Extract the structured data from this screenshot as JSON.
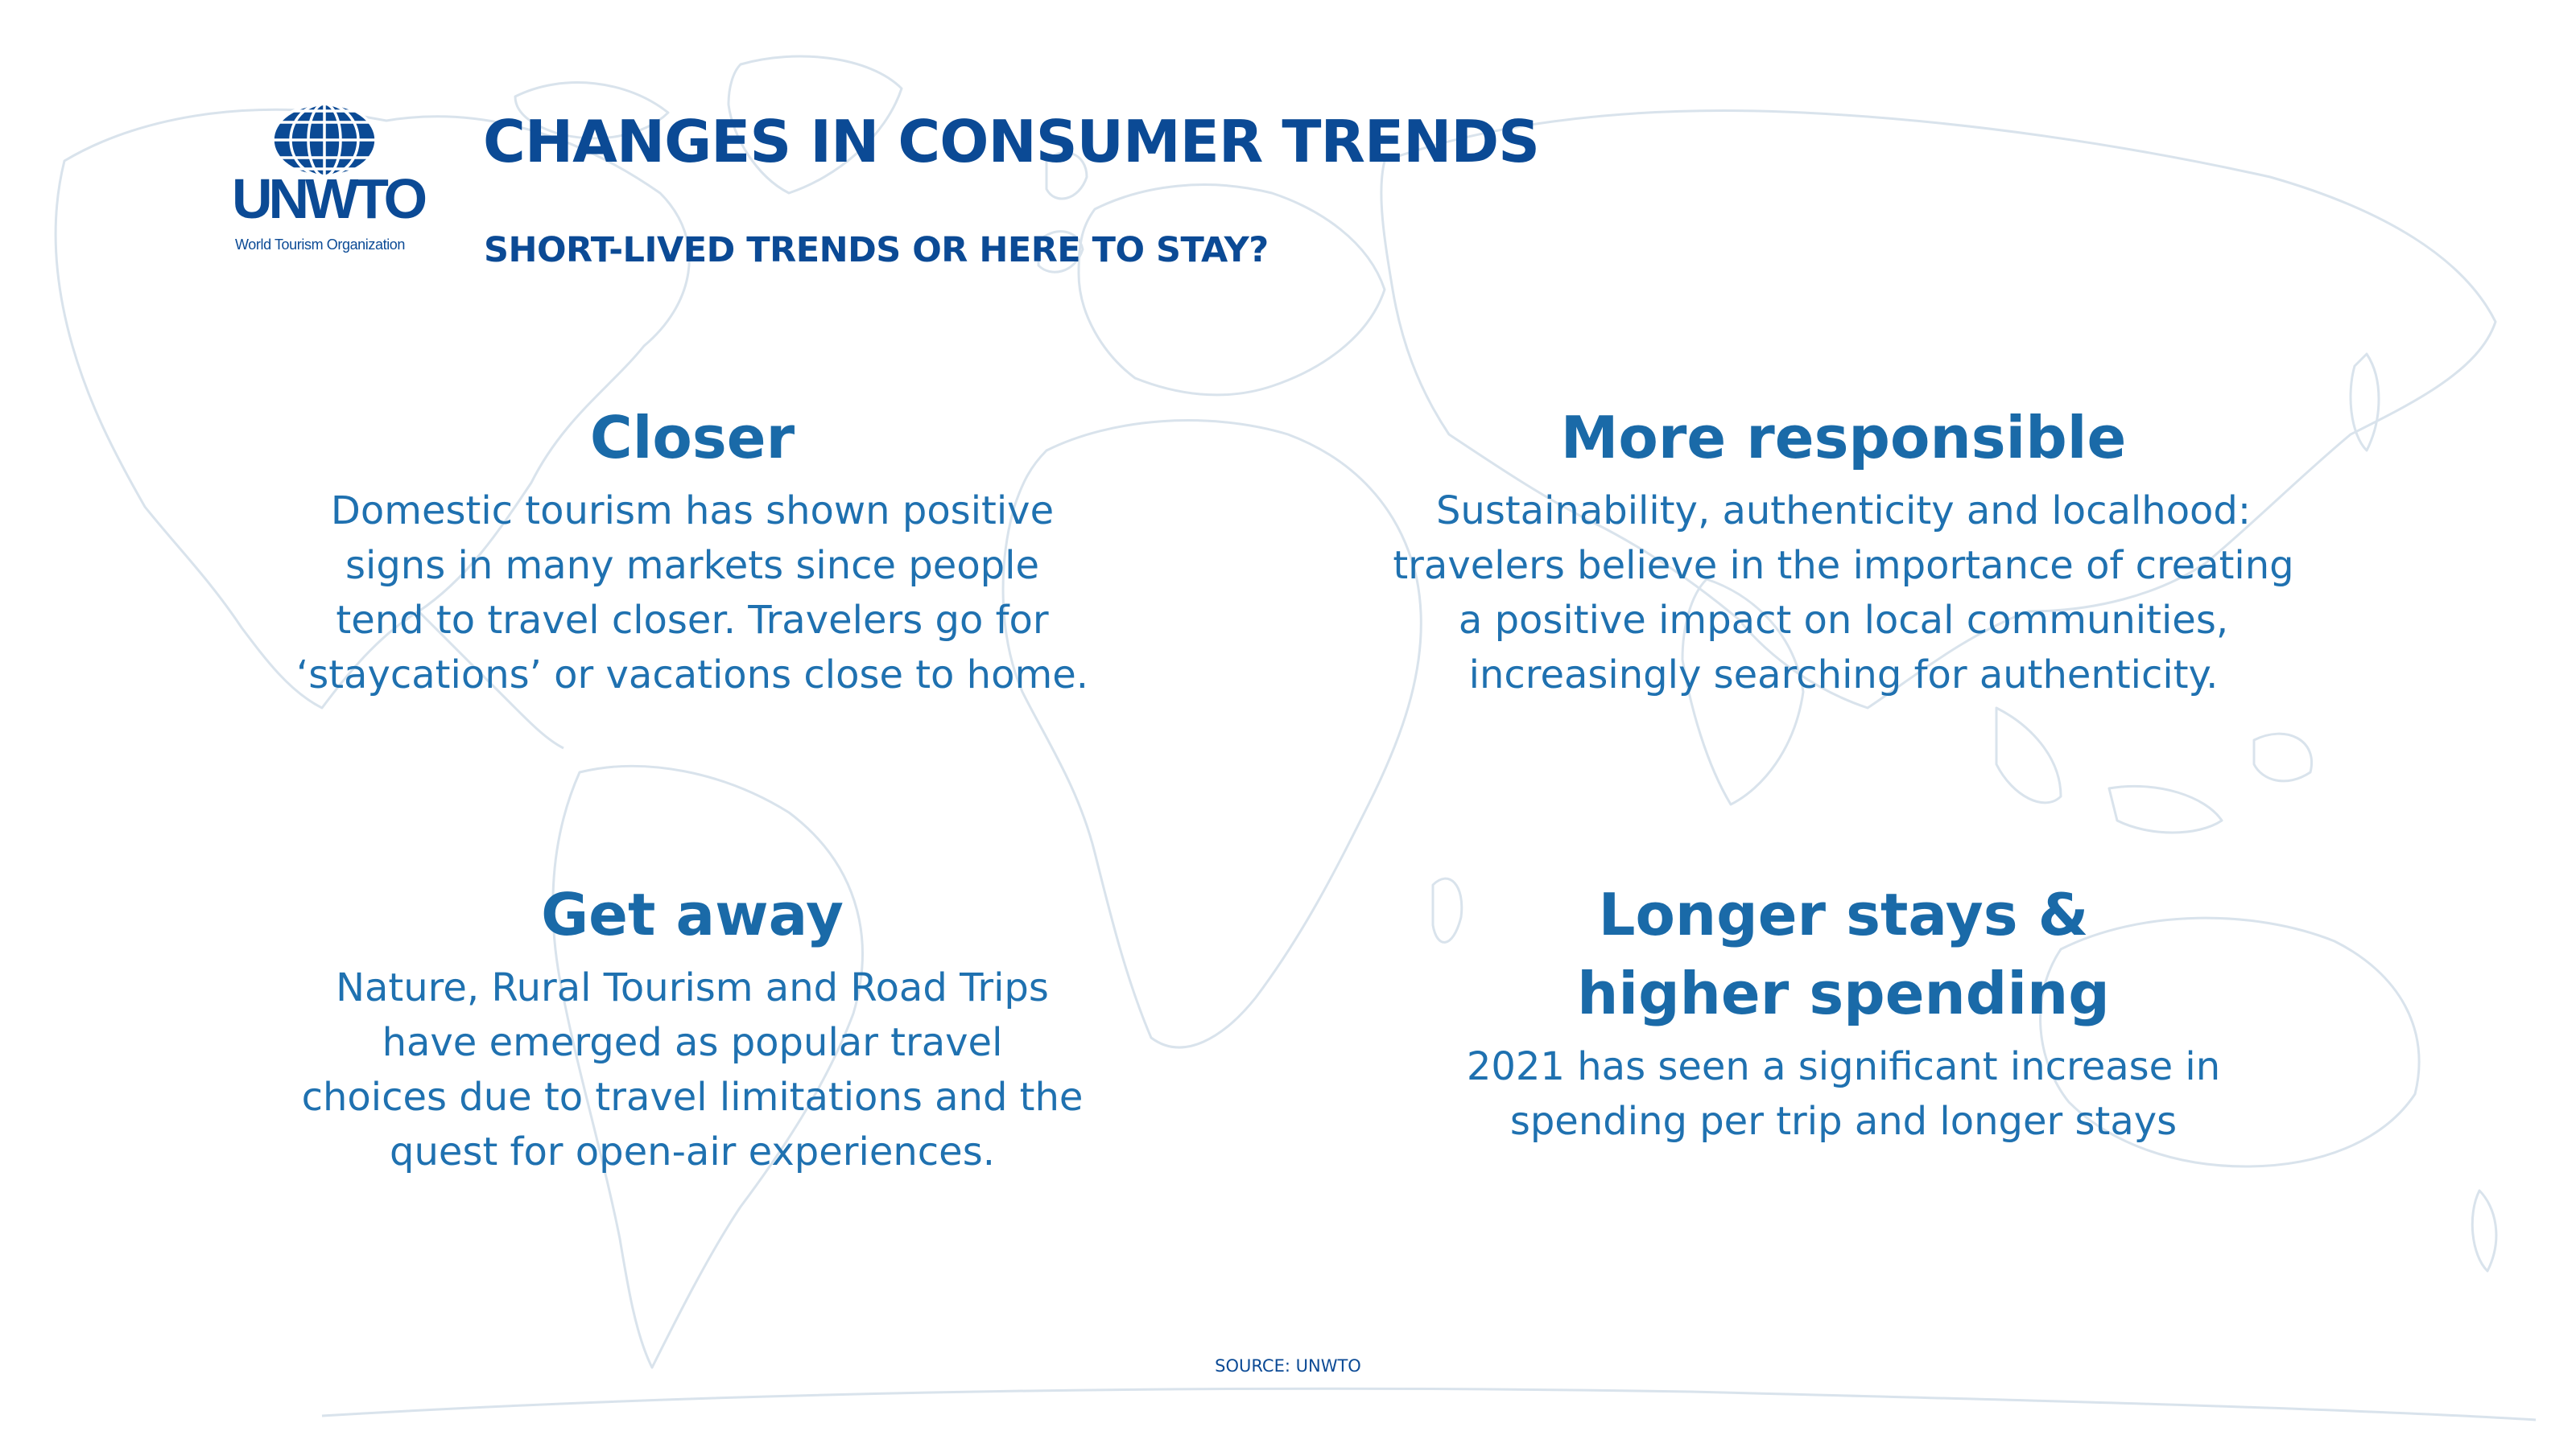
{
  "logo": {
    "acronym": "UNWTO",
    "organization": "World Tourism Organization"
  },
  "header": {
    "title": "CHANGES IN CONSUMER TRENDS",
    "subtitle": "SHORT-LIVED TRENDS OR HERE TO STAY?"
  },
  "cards": {
    "closer": {
      "title": "Closer",
      "lines": [
        "Domestic tourism has shown positive",
        "signs in many markets since people",
        "tend to travel closer. Travelers go for",
        "‘staycations’ or vacations close to home."
      ]
    },
    "responsible": {
      "title": "More responsible",
      "lines": [
        "Sustainability, authenticity and localhood:",
        "travelers believe in the importance of creating",
        "a positive impact on local communities,",
        "increasingly searching for authenticity."
      ]
    },
    "getaway": {
      "title": "Get away",
      "lines": [
        "Nature, Rural Tourism and Road Trips",
        "have emerged  as  popular  travel",
        "choices  due  to travel limitations and the",
        "quest for open-air experiences."
      ]
    },
    "longer": {
      "title_lines": [
        "Longer stays &",
        "higher spending"
      ],
      "lines": [
        "2021 has seen a significant increase in",
        "spending per trip and longer stays"
      ]
    }
  },
  "source": "SOURCE: UNWTO",
  "colors": {
    "brand_dark": "#0b4a95",
    "heading_blue": "#1a6aa8",
    "body_blue": "#1f71b0",
    "map_outline": "#d9e3ec"
  },
  "icons": {
    "logo_mark": "globe-icon",
    "background": "world-map"
  }
}
